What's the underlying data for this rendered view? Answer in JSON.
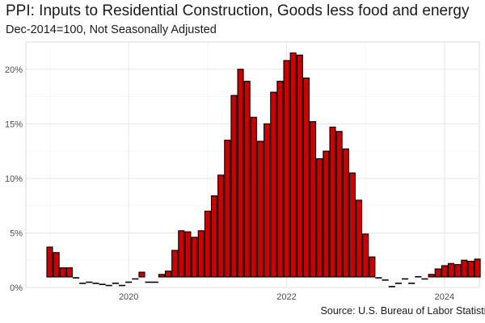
{
  "chart_data": {
    "type": "bar",
    "title": "PPI: Inputs to Residential Construction, Goods less food and energy",
    "subtitle": "Dec-2014=100, Not Seasonally Adjusted",
    "caption": "Source: U.S. Bureau of Labor Statistics",
    "xlabel": "",
    "ylabel": "",
    "x_start": "2019-01",
    "x_ticks": [
      "2020",
      "2022",
      "2024"
    ],
    "y_ticks": [
      "0%",
      "5%",
      "10%",
      "15%",
      "20%"
    ],
    "ylim": [
      0,
      22.5
    ],
    "grid": true,
    "legend": "none",
    "values": [
      3.7,
      3.2,
      1.8,
      1.8,
      0.9,
      0.4,
      0.5,
      0.4,
      0.3,
      0.2,
      0.4,
      0.2,
      0.5,
      0.8,
      1.4,
      0.5,
      0.5,
      1.2,
      1.5,
      3.4,
      5.2,
      5.1,
      4.6,
      5.2,
      7.0,
      8.4,
      10.3,
      13.5,
      17.6,
      20.0,
      18.9,
      15.6,
      13.4,
      15.0,
      17.9,
      18.9,
      20.8,
      21.5,
      21.3,
      19.2,
      15.2,
      11.8,
      12.5,
      14.7,
      14.3,
      12.7,
      10.5,
      8.0,
      4.9,
      2.8,
      0.9,
      0.7,
      0.1,
      0.4,
      0.8,
      0.4,
      1.0,
      0.8,
      1.2,
      1.7,
      2.0,
      2.2,
      2.1,
      2.5,
      2.4,
      2.6
    ],
    "bar_color": "#cc0000",
    "bar_outline": "#000000"
  }
}
